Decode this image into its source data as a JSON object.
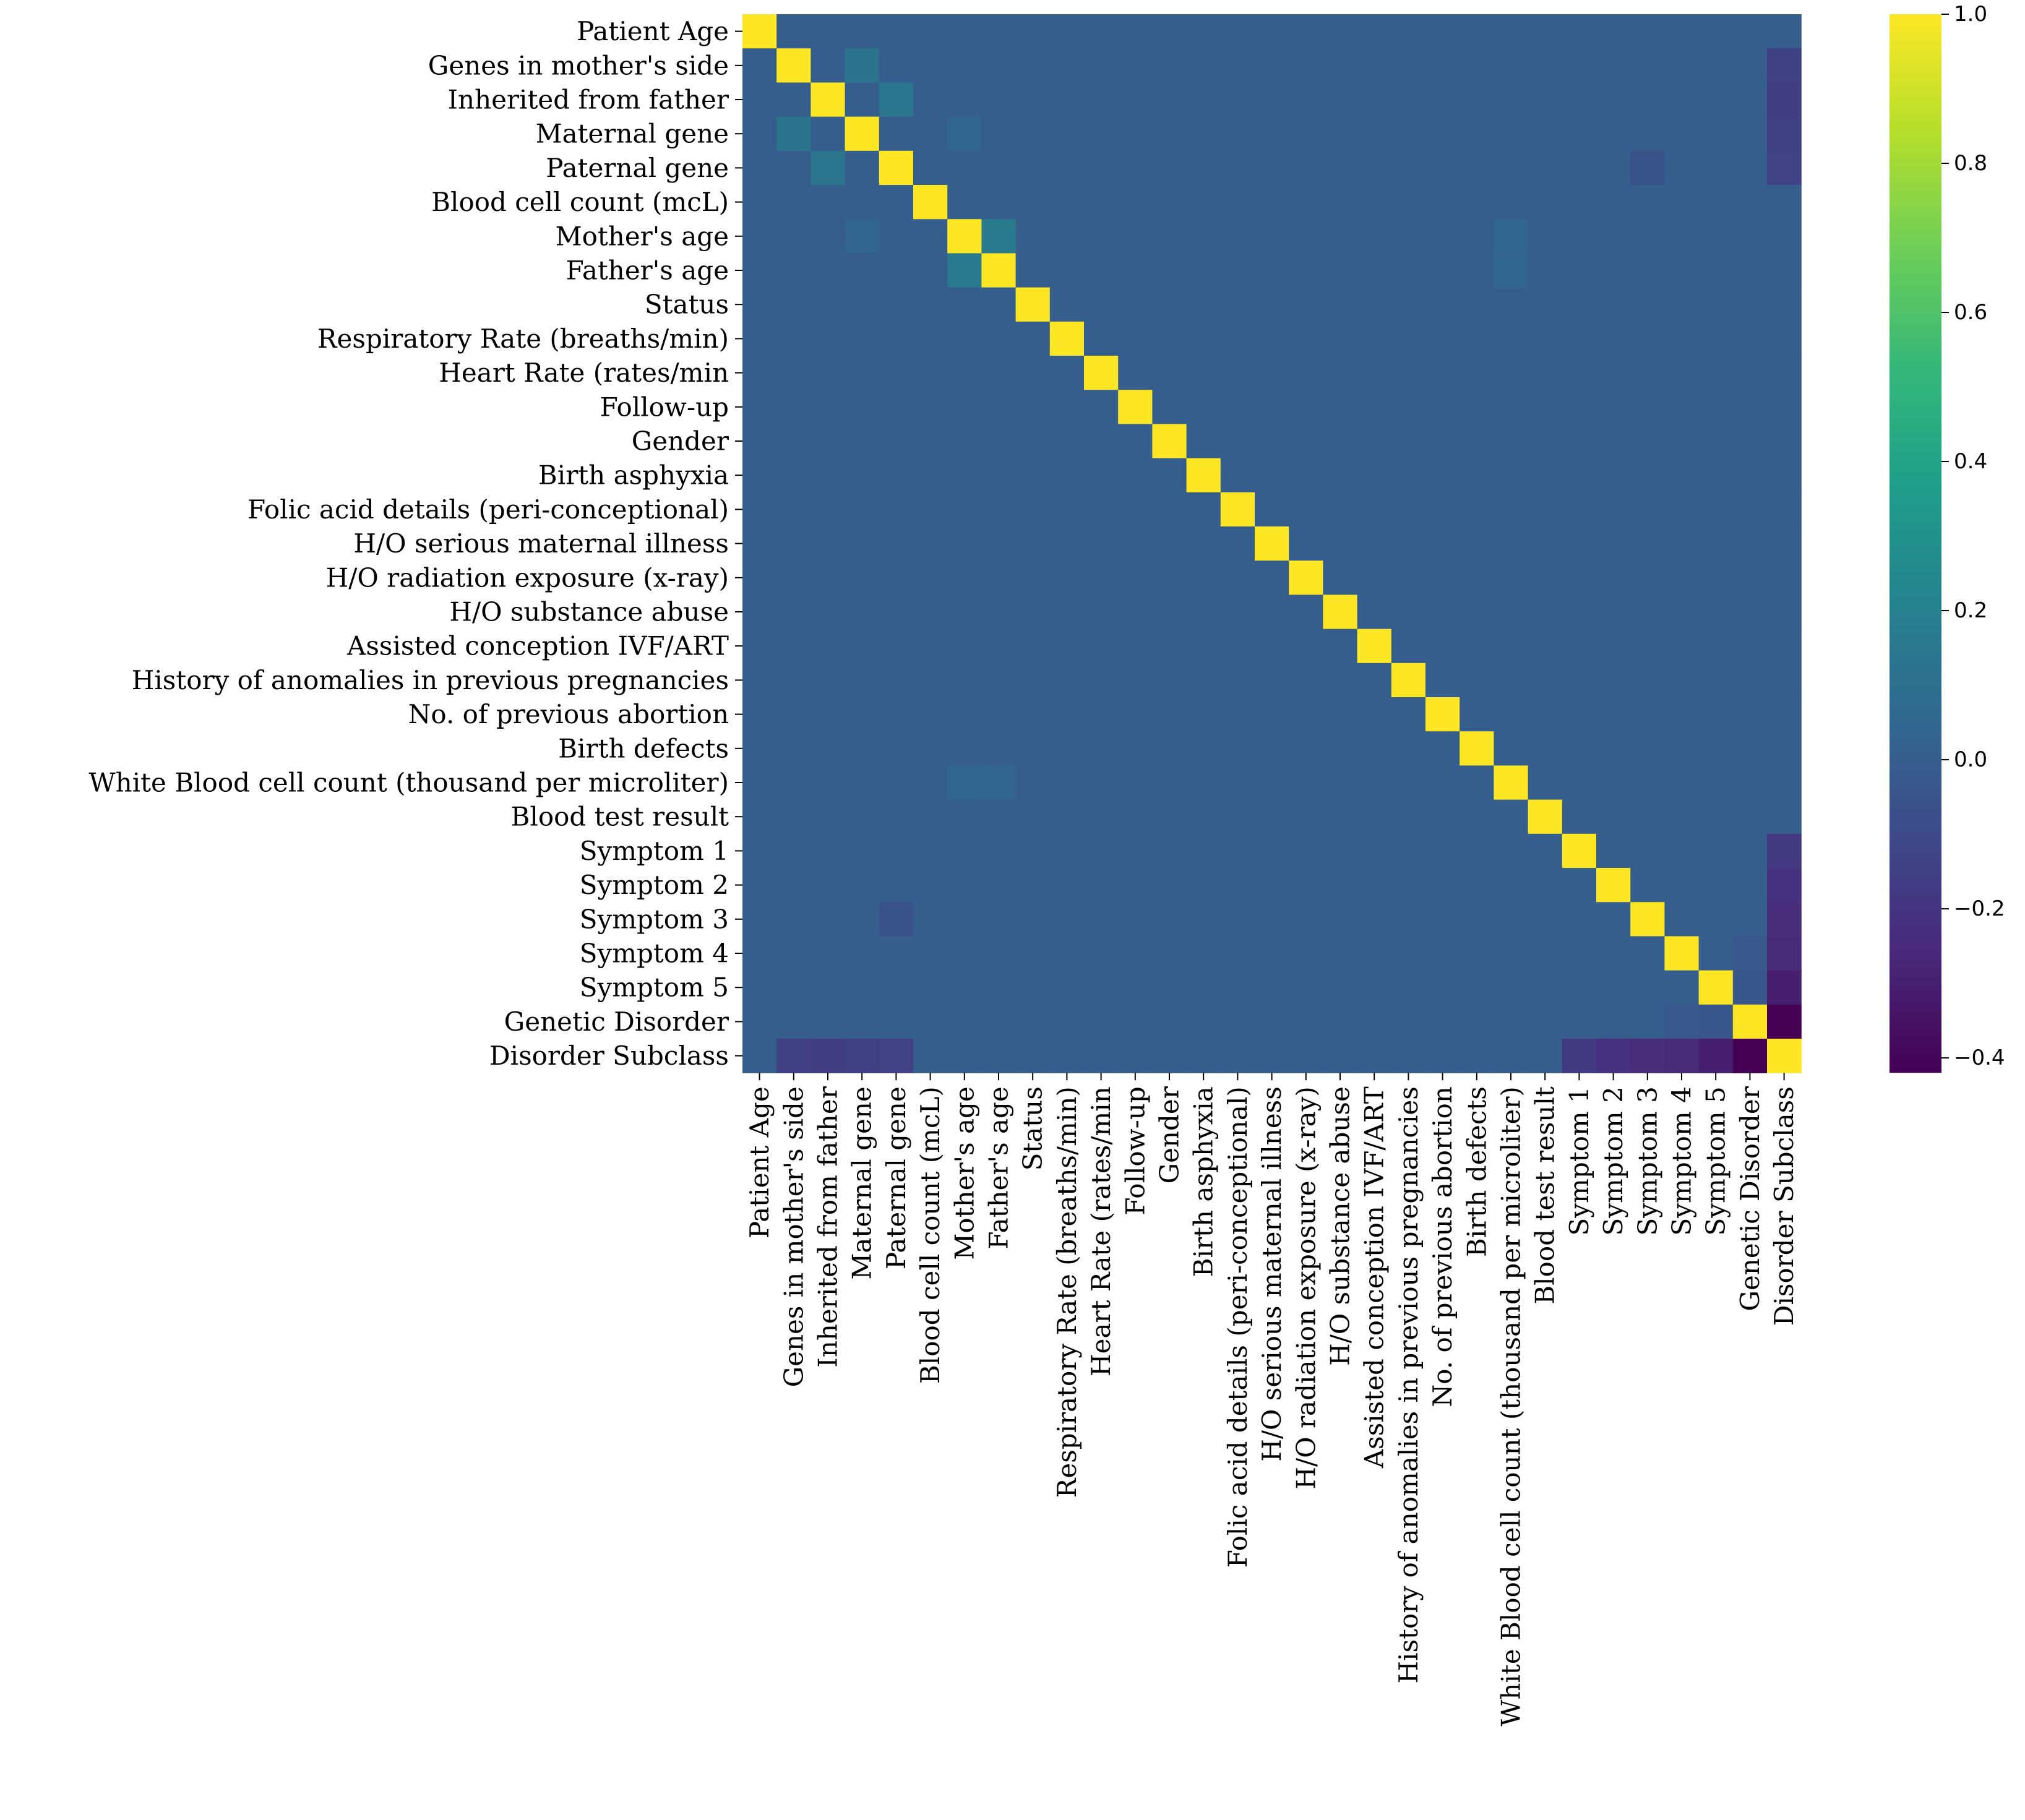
{
  "chart_data": {
    "type": "heatmap",
    "title": "",
    "xlabel": "",
    "ylabel": "",
    "labels": [
      "Patient Age",
      "Genes in mother's side",
      "Inherited from father",
      "Maternal gene",
      "Paternal gene",
      "Blood cell count (mcL)",
      "Mother's age",
      "Father's age",
      "Status",
      "Respiratory Rate (breaths/min)",
      "Heart Rate (rates/min",
      "Follow-up",
      "Gender",
      "Birth asphyxia",
      "Folic acid details (peri-conceptional)",
      "H/O serious maternal illness",
      "H/O radiation exposure (x-ray)",
      "H/O substance abuse",
      "Assisted conception IVF/ART",
      "History of anomalies in previous pregnancies",
      "No. of previous abortion",
      "Birth defects",
      "White Blood cell count (thousand per microliter)",
      "Blood test result",
      "Symptom 1",
      "Symptom 2",
      "Symptom 3",
      "Symptom 4",
      "Symptom 5",
      "Genetic Disorder",
      "Disorder Subclass"
    ],
    "default_value": 0.0,
    "diagonal_value": 1.0,
    "notable_pairs": [
      {
        "a": 1,
        "b": 3,
        "value": 0.12
      },
      {
        "a": 2,
        "b": 4,
        "value": 0.13
      },
      {
        "a": 6,
        "b": 7,
        "value": 0.16
      },
      {
        "a": 3,
        "b": 6,
        "value": 0.04
      },
      {
        "a": 6,
        "b": 22,
        "value": 0.05
      },
      {
        "a": 7,
        "b": 22,
        "value": 0.04
      },
      {
        "a": 4,
        "b": 26,
        "value": -0.06
      },
      {
        "a": 1,
        "b": 30,
        "value": -0.15
      },
      {
        "a": 2,
        "b": 30,
        "value": -0.16
      },
      {
        "a": 3,
        "b": 30,
        "value": -0.15
      },
      {
        "a": 4,
        "b": 30,
        "value": -0.14
      },
      {
        "a": 24,
        "b": 30,
        "value": -0.18
      },
      {
        "a": 25,
        "b": 30,
        "value": -0.22
      },
      {
        "a": 26,
        "b": 30,
        "value": -0.24
      },
      {
        "a": 27,
        "b": 30,
        "value": -0.25
      },
      {
        "a": 28,
        "b": 30,
        "value": -0.3
      },
      {
        "a": 29,
        "b": 30,
        "value": -0.42
      },
      {
        "a": 28,
        "b": 29,
        "value": -0.04
      },
      {
        "a": 27,
        "b": 29,
        "value": -0.03
      }
    ],
    "colormap": "viridis",
    "colormap_stops": [
      "#440154",
      "#482878",
      "#3e4989",
      "#31688e",
      "#26828e",
      "#1f9e89",
      "#35b779",
      "#6ece58",
      "#b5de2b",
      "#fde725"
    ],
    "colorbar": {
      "min": -0.42,
      "max": 1.0,
      "ticks": [
        1.0,
        0.8,
        0.6,
        0.4,
        0.2,
        0.0,
        -0.2,
        -0.4
      ],
      "tick_labels": [
        "1.0",
        "0.8",
        "0.6",
        "0.4",
        "0.2",
        "0.0",
        "−0.2",
        "−0.4"
      ]
    }
  }
}
